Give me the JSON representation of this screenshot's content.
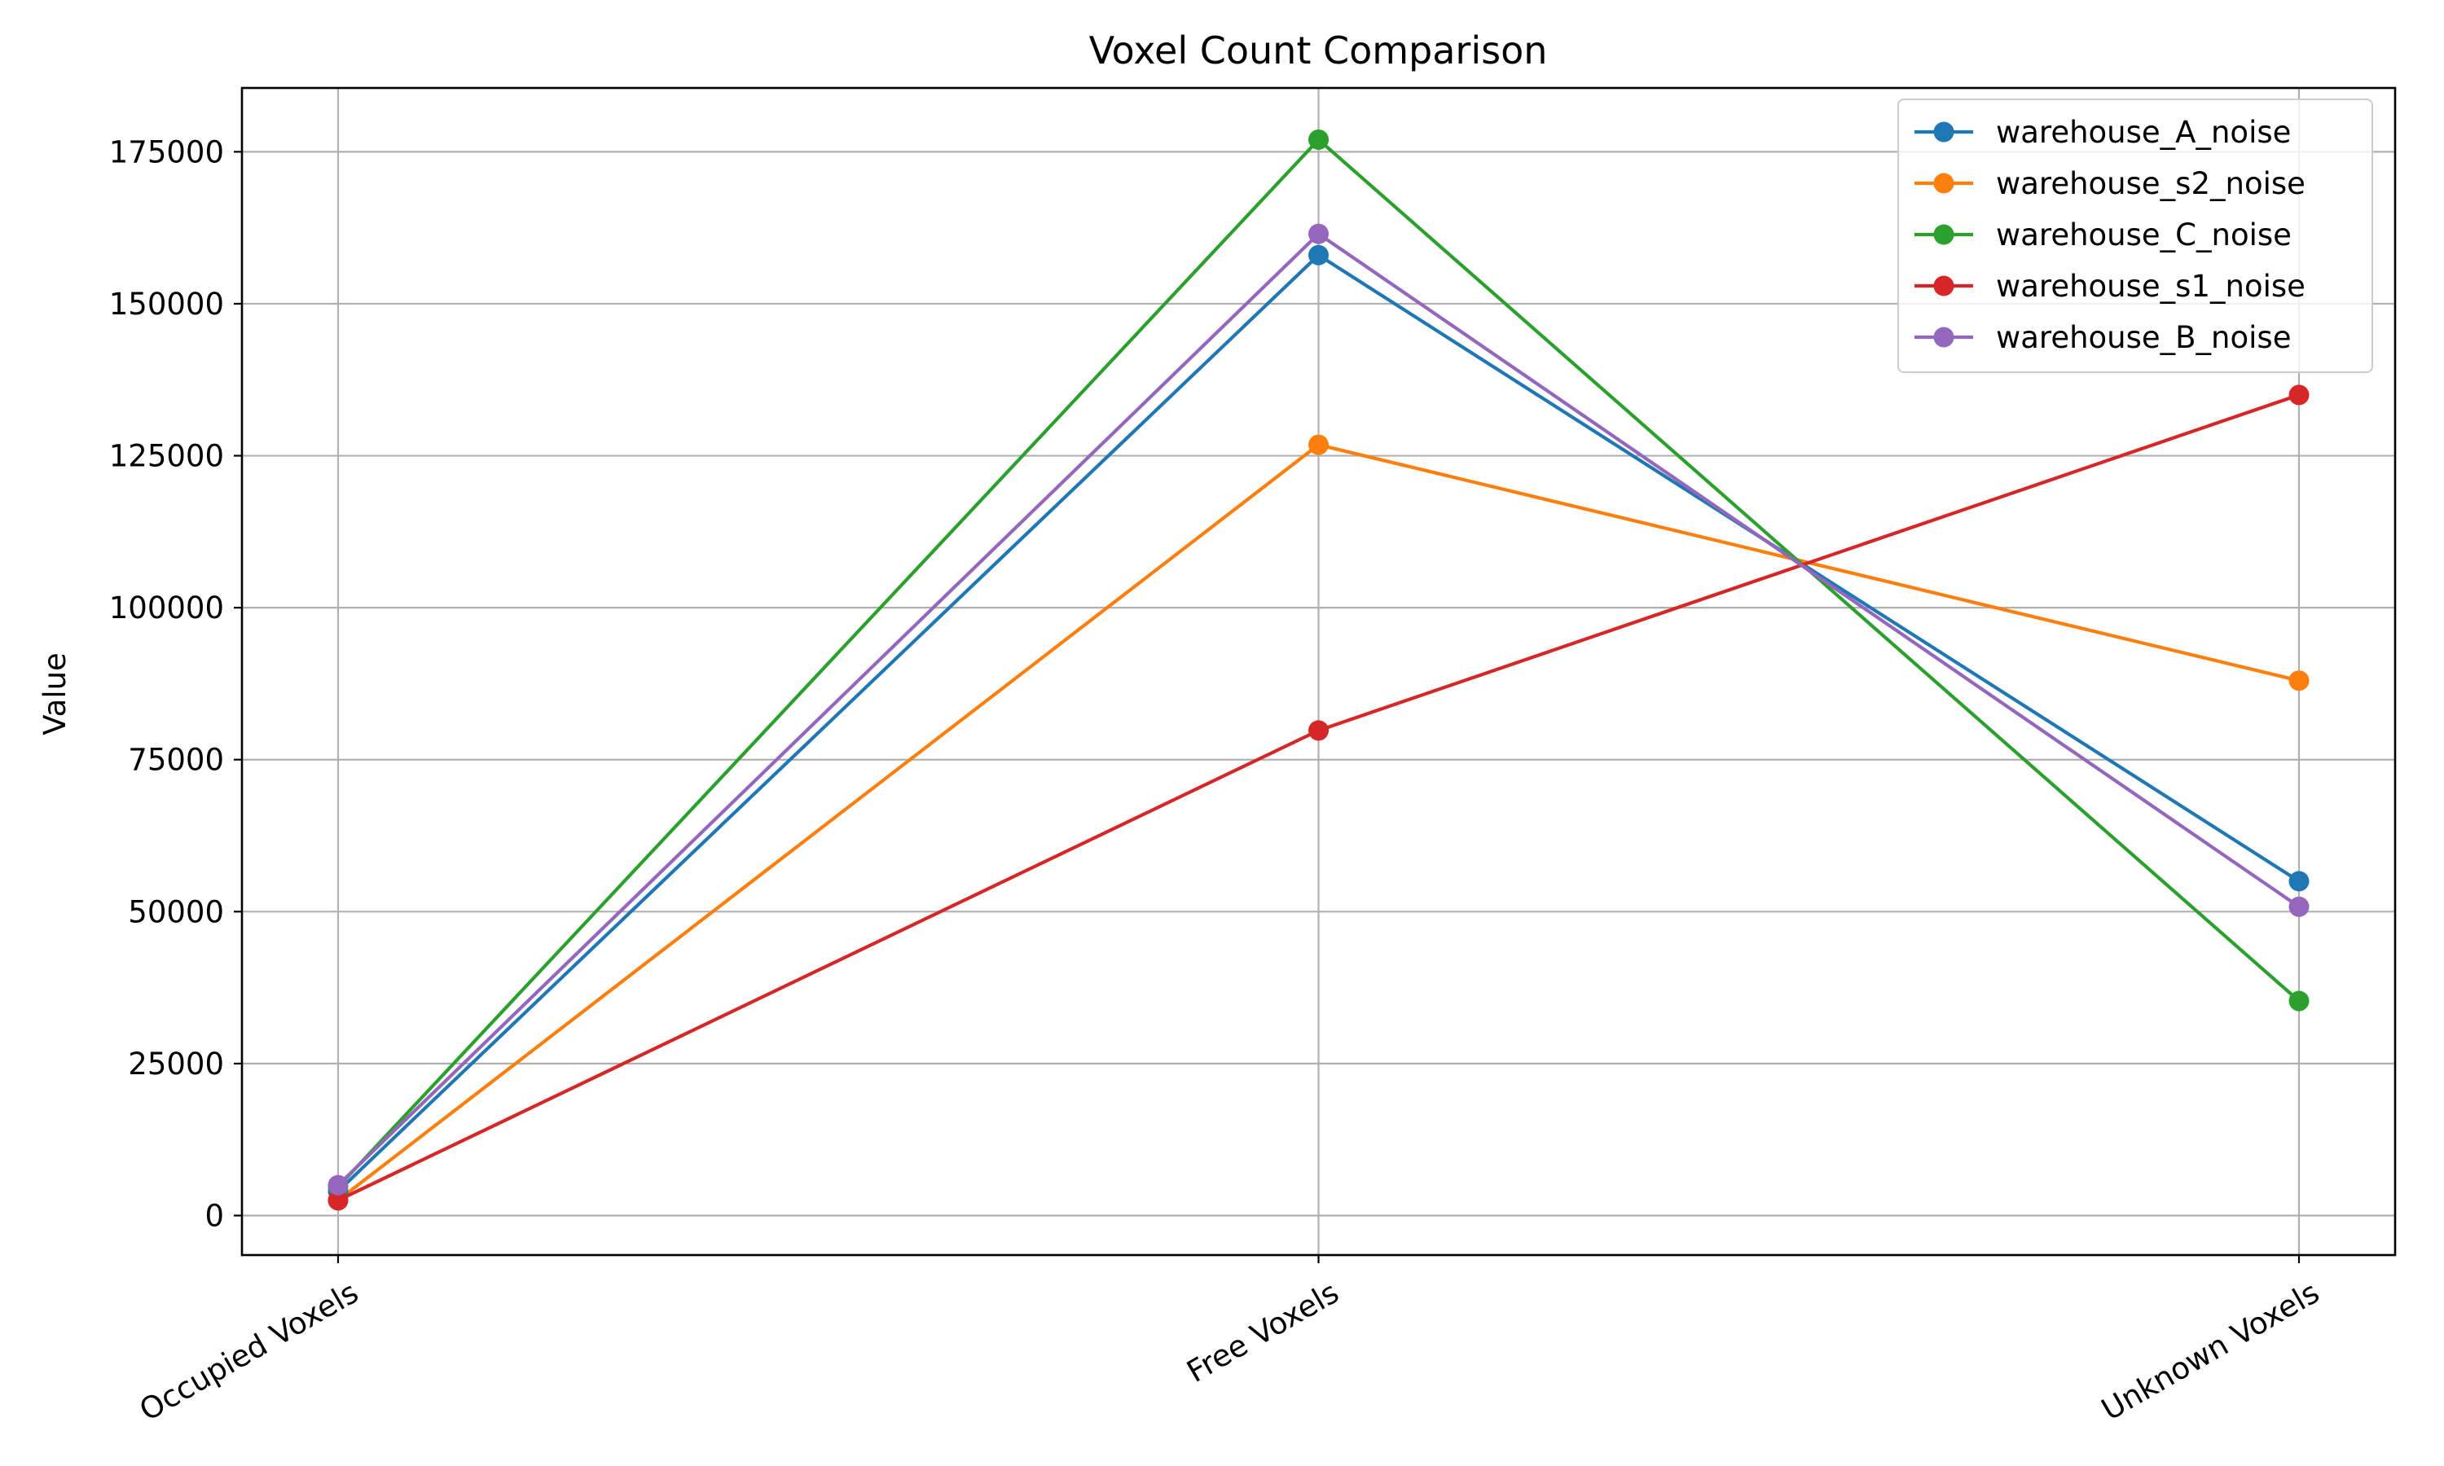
{
  "chart_data": {
    "type": "line",
    "title": "Voxel Count Comparison",
    "xlabel": "",
    "ylabel": "Value",
    "categories": [
      "Occupied Voxels",
      "Free Voxels",
      "Unknown Voxels"
    ],
    "ylim": [
      -6500,
      185500
    ],
    "yticks": [
      0,
      25000,
      50000,
      75000,
      100000,
      125000,
      150000,
      175000
    ],
    "grid": true,
    "legend_position": "top-right",
    "series": [
      {
        "name": "warehouse_A_noise",
        "color": "#1f77b4",
        "values": [
          4000,
          158000,
          55000
        ]
      },
      {
        "name": "warehouse_s2_noise",
        "color": "#ff7f0e",
        "values": [
          2500,
          126800,
          88000
        ]
      },
      {
        "name": "warehouse_C_noise",
        "color": "#2ca02c",
        "values": [
          4700,
          177000,
          35300
        ]
      },
      {
        "name": "warehouse_s1_noise",
        "color": "#d62728",
        "values": [
          2500,
          79800,
          135000
        ]
      },
      {
        "name": "warehouse_B_noise",
        "color": "#9467bd",
        "values": [
          5000,
          161500,
          50800
        ]
      }
    ]
  }
}
